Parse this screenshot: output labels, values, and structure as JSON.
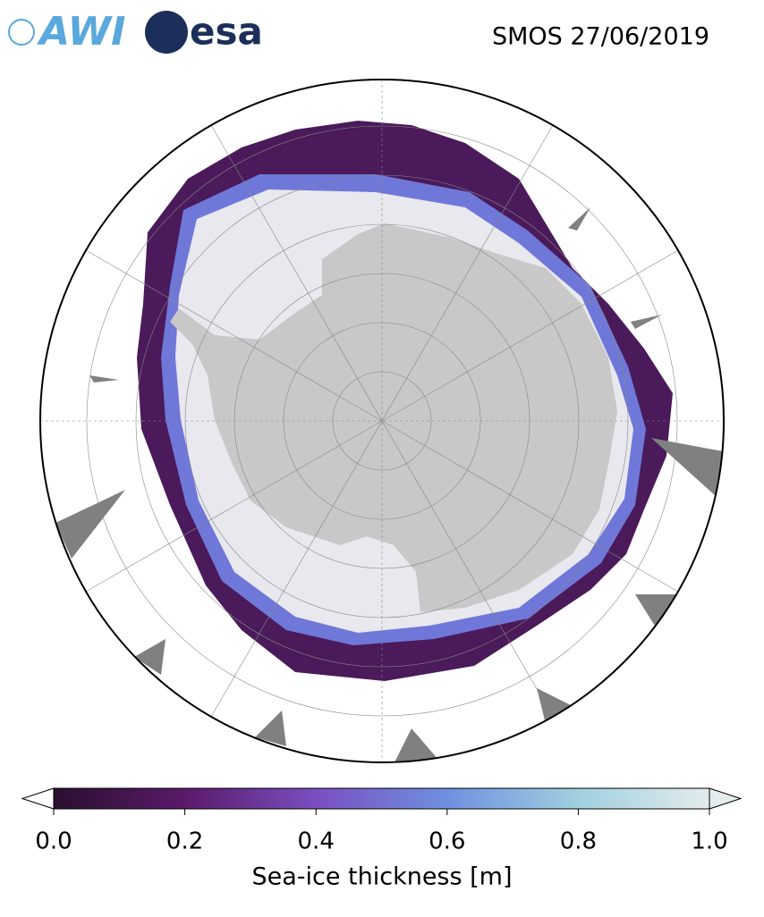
{
  "logos": {
    "awi": "AWI",
    "esa": "esa"
  },
  "title": "SMOS 27/06/2019",
  "colorbar": {
    "lim": [
      0,
      1
    ],
    "ticks": [
      {
        "value": 0,
        "label": "0.0"
      },
      0.2,
      0.4,
      0.6,
      0.8,
      {
        "value": 1,
        "label": "1.0"
      }
    ],
    "label": "Sea-ice thickness [m]",
    "colormap": [
      "#2a0f2f",
      "#5a1a6a",
      "#7a4fc0",
      "#6f90e0",
      "#a0d0e0",
      "#e4ecec"
    ]
  }
}
